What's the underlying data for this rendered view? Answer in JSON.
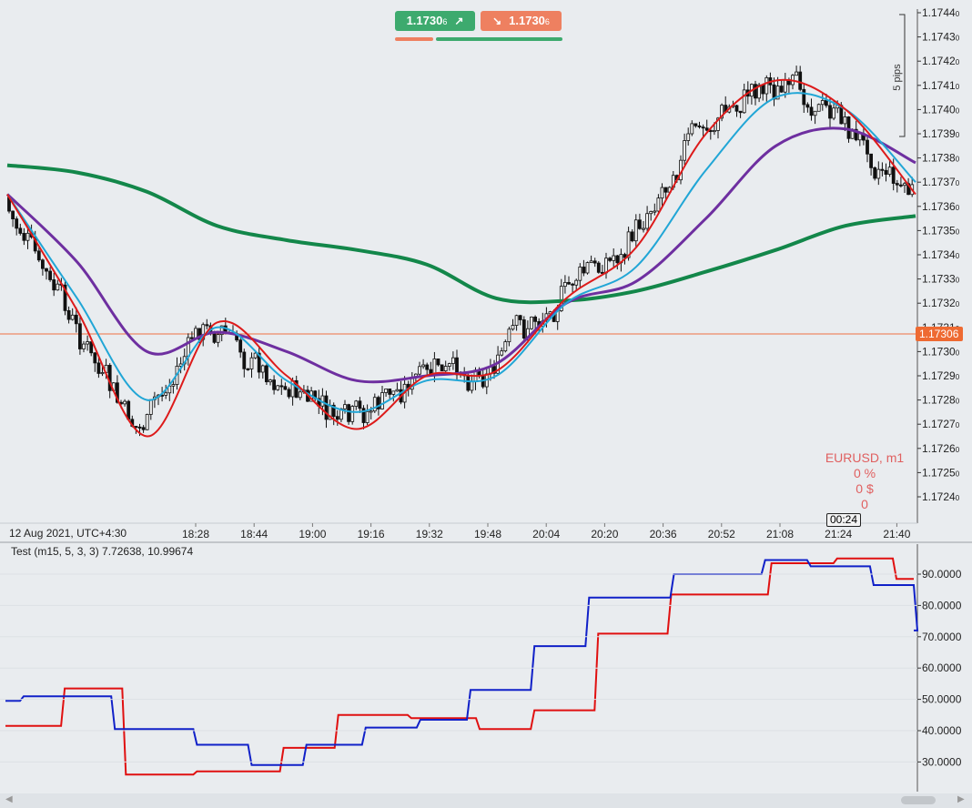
{
  "trade_buttons": {
    "buy_main": "1.1730",
    "buy_small": "6",
    "buy_icon": "arrow-up-right-icon",
    "buy_color": "#3daa6e",
    "sell_main": "1.1730",
    "sell_small": "6",
    "sell_icon": "arrow-down-right-icon",
    "sell_color": "#ee8060"
  },
  "main_chart": {
    "symbol": "EURUSD, m1",
    "timezone_label": "12 Aug 2021, UTC+4:30",
    "x_labels": [
      "18:28",
      "18:44",
      "19:00",
      "19:16",
      "19:32",
      "19:48",
      "20:04",
      "20:20",
      "20:36",
      "20:52",
      "21:08",
      "21:24",
      "21:40"
    ],
    "time_cursor": "00:24",
    "y_labels": [
      "1.1744",
      "1.1743",
      "1.1742",
      "1.1741",
      "1.1740",
      "1.1739",
      "1.1738",
      "1.1737",
      "1.1736",
      "1.1735",
      "1.1734",
      "1.1733",
      "1.1732",
      "1.1731",
      "1.1730",
      "1.1729",
      "1.1728",
      "1.1727",
      "1.1726",
      "1.1725",
      "1.1724"
    ],
    "y_labels_small": "0",
    "current_price": "1.17306",
    "current_price_color": "#ee6a32",
    "pips_label": "5 pips",
    "info_lines": [
      "EURUSD, m1",
      "0 %",
      "0 $",
      "0"
    ],
    "info_color": "#e06060",
    "colors": {
      "ma_red": "#dd1a1a",
      "ma_cyan": "#21a6d6",
      "ma_purple": "#6e2fa0",
      "ma_green": "#13874a"
    }
  },
  "sub_chart": {
    "title": "Test (m15, 5, 3, 3) 7.72638, 10.99674",
    "y_labels": [
      "90.0000",
      "80.0000",
      "70.0000",
      "60.0000",
      "50.0000",
      "40.0000",
      "30.0000"
    ],
    "colors": {
      "line_red": "#e01010",
      "line_blue": "#1020c8"
    }
  },
  "chart_data": [
    {
      "type": "line",
      "title": "",
      "ylim": [
        1.17232,
        1.17446
      ],
      "time_range": [
        "18:12",
        "21:46"
      ],
      "series": [
        {
          "key": "ma_green",
          "values": [
            1.17377,
            1.17374,
            1.17366,
            1.17352,
            1.17346,
            1.17342,
            1.17336,
            1.17322,
            1.17321,
            1.17325,
            1.17333,
            1.17342,
            1.17352,
            1.17356
          ]
        },
        {
          "key": "ma_purple",
          "values": [
            1.17365,
            1.17337,
            1.173,
            1.17308,
            1.173,
            1.17288,
            1.1729,
            1.17295,
            1.1732,
            1.17329,
            1.17355,
            1.17385,
            1.17392,
            1.17378
          ]
        },
        {
          "key": "ma_cyan",
          "values": [
            1.17365,
            1.17322,
            1.1728,
            1.1731,
            1.17288,
            1.17275,
            1.17288,
            1.1729,
            1.1732,
            1.17335,
            1.17375,
            1.17405,
            1.174,
            1.1737
          ]
        },
        {
          "key": "ma_red",
          "values": [
            1.17365,
            1.17317,
            1.17265,
            1.17312,
            1.1729,
            1.17268,
            1.1729,
            1.17292,
            1.17322,
            1.17343,
            1.1739,
            1.17412,
            1.174,
            1.17365
          ]
        }
      ]
    },
    {
      "type": "line",
      "title": "",
      "ylim": [
        25,
        97
      ],
      "series": [
        {
          "key": "line_red",
          "x": [
            0,
            0.065,
            0.132,
            0.21,
            0.305,
            0.365,
            0.445,
            0.52,
            0.58,
            0.65,
            0.73,
            0.84,
            0.912,
            0.977
          ],
          "values": [
            41.5,
            53.5,
            26,
            27,
            34.5,
            45,
            44,
            40.5,
            46.5,
            71,
            83.5,
            93.5,
            95,
            88.5
          ]
        },
        {
          "key": "line_blue",
          "x": [
            0,
            0.02,
            0.12,
            0.21,
            0.27,
            0.33,
            0.395,
            0.455,
            0.51,
            0.58,
            0.64,
            0.733,
            0.833,
            0.883,
            0.952,
            1.0
          ],
          "values": [
            49.5,
            51,
            40.5,
            35.5,
            29,
            35.5,
            41,
            43.5,
            53,
            67,
            82.5,
            90,
            94.5,
            92.5,
            86.5,
            72
          ]
        }
      ]
    }
  ]
}
